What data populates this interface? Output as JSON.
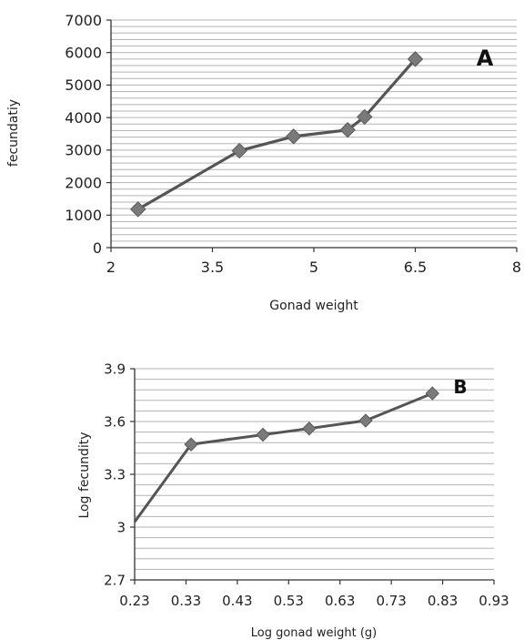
{
  "chart_data": [
    {
      "type": "line",
      "panel_label": "A",
      "xlabel": "Gonad weight",
      "ylabel": "fecundatiy",
      "xlim": [
        2,
        8
      ],
      "ylim": [
        0,
        7000
      ],
      "xticks": [
        "2",
        "3.5",
        "5",
        "6.5",
        "8"
      ],
      "yticks": [
        "0",
        "1000",
        "2000",
        "3000",
        "4000",
        "5000",
        "6000",
        "7000"
      ],
      "grid": "horizontal",
      "series": [
        {
          "color": "#555555",
          "points": [
            {
              "x": 2.4,
              "y": 1180
            },
            {
              "x": 3.9,
              "y": 2980
            },
            {
              "x": 4.7,
              "y": 3420
            },
            {
              "x": 5.5,
              "y": 3620
            },
            {
              "x": 5.75,
              "y": 4020
            },
            {
              "x": 6.5,
              "y": 5800
            }
          ]
        }
      ]
    },
    {
      "type": "line",
      "panel_label": "B",
      "xlabel": "Log gonad weight (g)",
      "ylabel": "Log fecundity",
      "xlim": [
        0.23,
        0.93
      ],
      "ylim": [
        2.7,
        3.9
      ],
      "xticks": [
        "0.23",
        "0.33",
        "0.43",
        "0.53",
        "0.63",
        "0.73",
        "0.83",
        "0.93"
      ],
      "yticks": [
        "2.7",
        "3",
        "3.3",
        "3.6",
        "3.9"
      ],
      "grid": "horizontal",
      "series": [
        {
          "color": "#555555",
          "points": [
            {
              "x": 0.23,
              "y": 3.03,
              "marker": false
            },
            {
              "x": 0.34,
              "y": 3.47
            },
            {
              "x": 0.48,
              "y": 3.525
            },
            {
              "x": 0.57,
              "y": 3.56
            },
            {
              "x": 0.68,
              "y": 3.605
            },
            {
              "x": 0.81,
              "y": 3.76
            }
          ]
        }
      ]
    }
  ]
}
